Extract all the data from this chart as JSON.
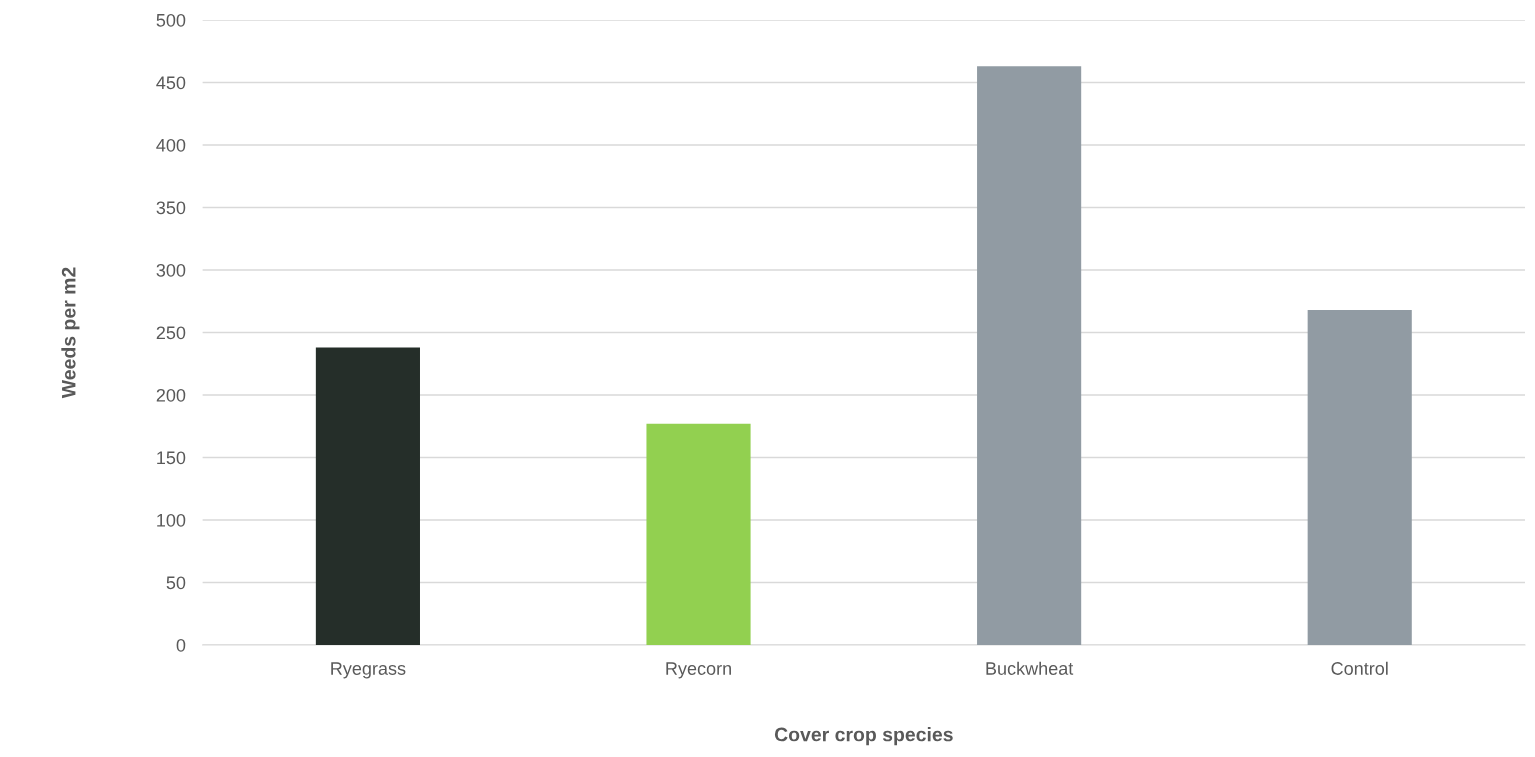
{
  "chart_data": {
    "type": "bar",
    "xlabel": "Cover crop species",
    "ylabel": "Weeds per m2",
    "categories": [
      "Ryegrass",
      "Ryecorn",
      "Buckwheat",
      "Control"
    ],
    "values": [
      238,
      177,
      463,
      268
    ],
    "colors": [
      "#252e29",
      "#92d050",
      "#919ba3",
      "#919ba3"
    ],
    "ylim": [
      0,
      500
    ],
    "yticks": [
      0,
      50,
      100,
      150,
      200,
      250,
      300,
      350,
      400,
      450,
      500
    ],
    "grid": "y"
  }
}
